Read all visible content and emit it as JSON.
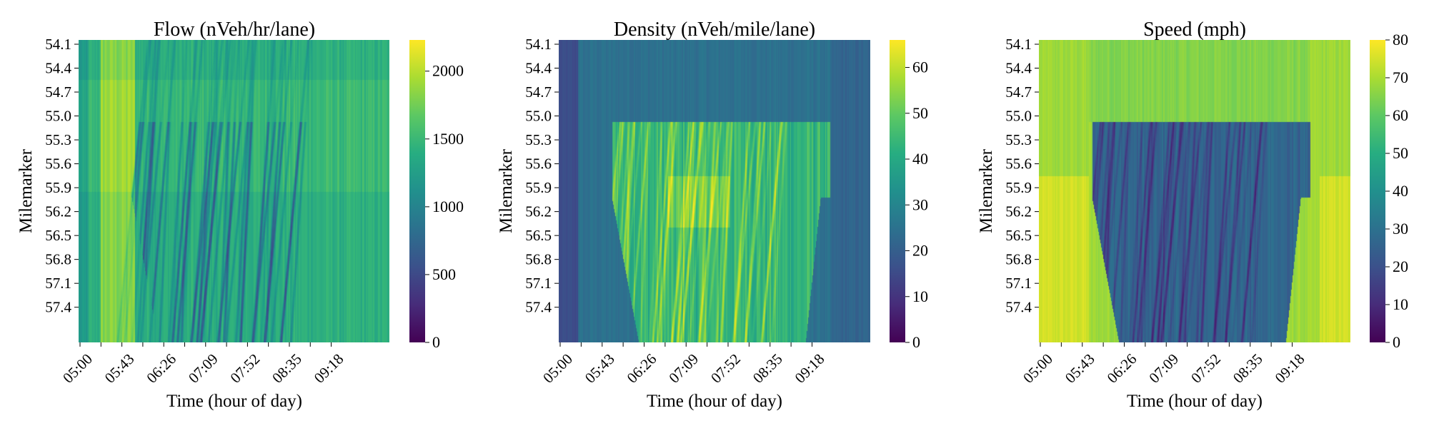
{
  "chart_data": [
    {
      "type": "heatmap",
      "title": "Flow (nVeh/hr/lane)",
      "xlabel": "Time (hour of day)",
      "ylabel": "Milemarker",
      "x_tick_labels": [
        "05:00",
        "05:43",
        "06:26",
        "07:09",
        "07:52",
        "08:35",
        "09:18"
      ],
      "y_tick_labels": [
        "54.1",
        "54.4",
        "54.7",
        "55.0",
        "55.3",
        "55.6",
        "55.9",
        "56.2",
        "56.5",
        "56.8",
        "57.1",
        "57.4"
      ],
      "colorbar_ticks": [
        "0",
        "500",
        "1000",
        "1500",
        "2000"
      ],
      "vmin": 0,
      "vmax": 2230,
      "colormap": "viridis",
      "grid": false
    },
    {
      "type": "heatmap",
      "title": "Density (nVeh/mile/lane)",
      "xlabel": "Time (hour of day)",
      "ylabel": "Milemarker",
      "x_tick_labels": [
        "05:00",
        "05:43",
        "06:26",
        "07:09",
        "07:52",
        "08:35",
        "09:18"
      ],
      "y_tick_labels": [
        "54.1",
        "54.4",
        "54.7",
        "55.0",
        "55.3",
        "55.6",
        "55.9",
        "56.2",
        "56.5",
        "56.8",
        "57.1",
        "57.4"
      ],
      "colorbar_ticks": [
        "0",
        "10",
        "20",
        "30",
        "40",
        "50",
        "60"
      ],
      "vmin": 0,
      "vmax": 66,
      "colormap": "viridis",
      "grid": false
    },
    {
      "type": "heatmap",
      "title": "Speed (mph)",
      "xlabel": "Time (hour of day)",
      "ylabel": "Milemarker",
      "x_tick_labels": [
        "05:00",
        "05:43",
        "06:26",
        "07:09",
        "07:52",
        "08:35",
        "09:18"
      ],
      "y_tick_labels": [
        "54.1",
        "54.4",
        "54.7",
        "55.0",
        "55.3",
        "55.6",
        "55.9",
        "56.2",
        "56.5",
        "56.8",
        "57.1",
        "57.4"
      ],
      "colorbar_ticks": [
        "0",
        "10",
        "20",
        "30",
        "40",
        "50",
        "60",
        "70",
        "80"
      ],
      "vmin": 0,
      "vmax": 80,
      "colormap": "viridis",
      "grid": false
    }
  ]
}
